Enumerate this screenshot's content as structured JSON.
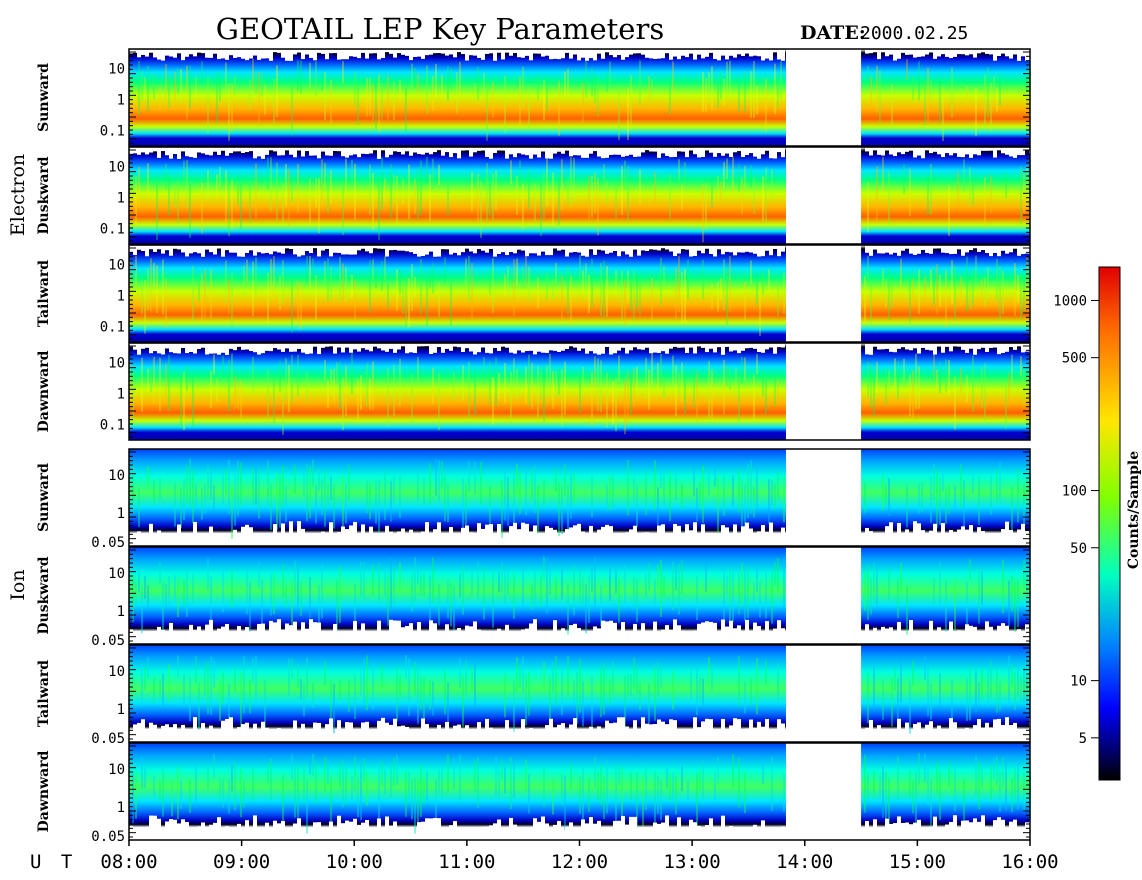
{
  "chart_data": {
    "type": "heatmap",
    "title": "GEOTAIL LEP Key Parameters",
    "date_label": "DATE:",
    "date_value": "2000.02.25",
    "xlabel": "U T",
    "x_ticks": [
      "08:00",
      "09:00",
      "10:00",
      "11:00",
      "12:00",
      "13:00",
      "14:00",
      "15:00",
      "16:00"
    ],
    "x_range": [
      "08:00",
      "16:00"
    ],
    "data_gap": [
      "13:50",
      "14:30"
    ],
    "y_scale": "log",
    "groups": [
      {
        "name": "Electron",
        "y_ticks": [
          "10",
          "1",
          "0.1"
        ],
        "panels": [
          {
            "name": "Sunward"
          },
          {
            "name": "Duskward"
          },
          {
            "name": "Tailward"
          },
          {
            "name": "Dawnward"
          }
        ]
      },
      {
        "name": "Ion",
        "y_ticks": [
          "10",
          "1",
          "0.05"
        ],
        "panels": [
          {
            "name": "Sunward"
          },
          {
            "name": "Duskward"
          },
          {
            "name": "Tailward"
          },
          {
            "name": "Dawnward"
          }
        ]
      }
    ],
    "colorbar": {
      "label": "Counts/Sample",
      "scale": "log",
      "range": [
        3,
        1500
      ],
      "ticks": [
        "1000",
        "500",
        "100",
        "50",
        "10",
        "5"
      ],
      "colormap": [
        "#000000",
        "#0000ff",
        "#00ffff",
        "#00ff00",
        "#ffff00",
        "#ff0000"
      ]
    }
  }
}
